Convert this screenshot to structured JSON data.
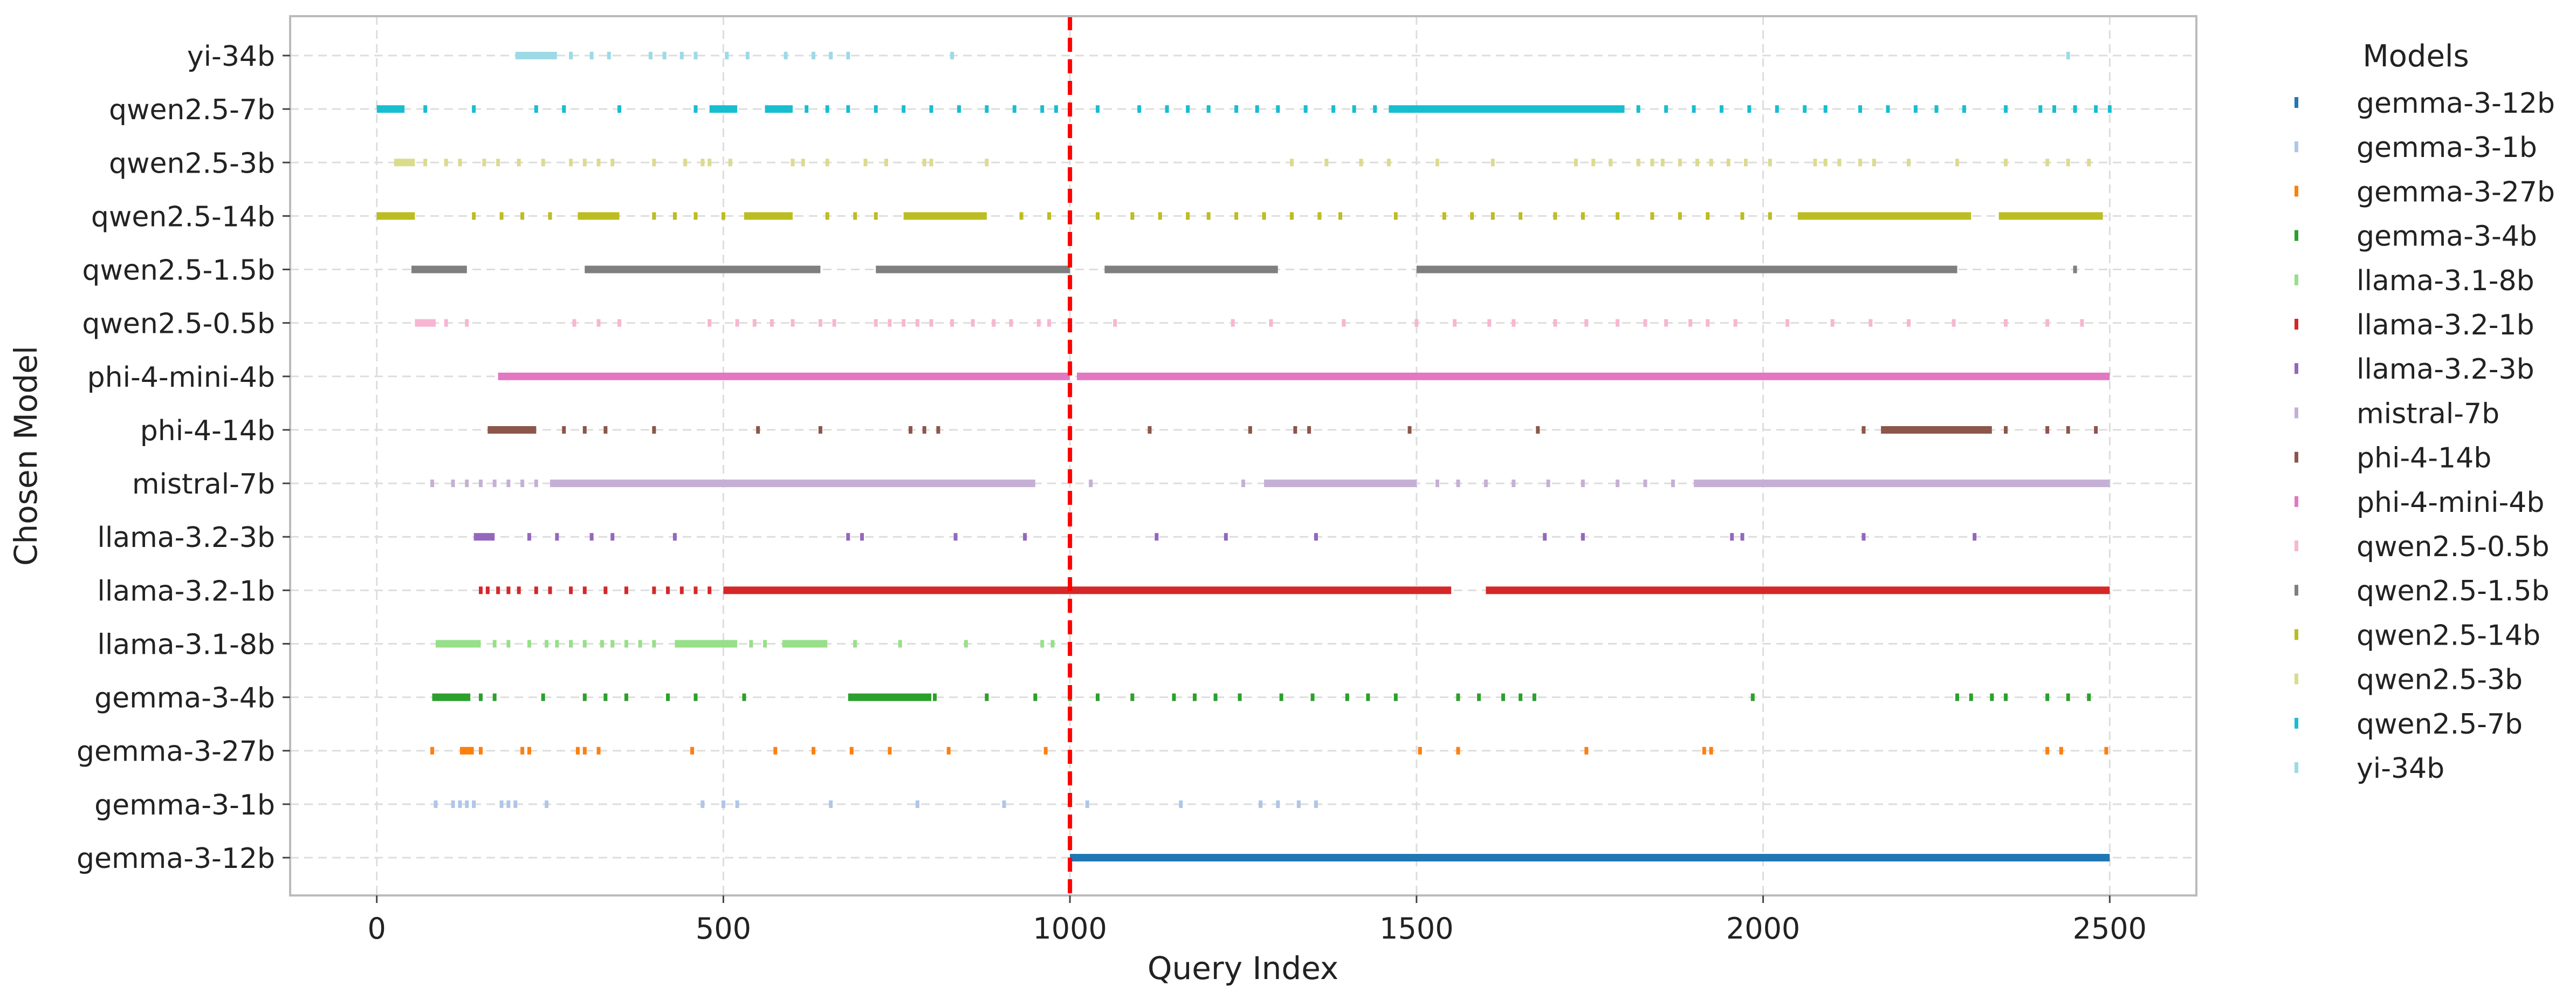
{
  "chart_data": {
    "type": "scatter",
    "xlabel": "Query Index",
    "ylabel": "Chosen Model",
    "xlim": [
      -125,
      2625
    ],
    "xticks": [
      0,
      500,
      1000,
      1500,
      2000,
      2500
    ],
    "grid": true,
    "legend": {
      "title": "Models",
      "placement": "outside-right"
    },
    "annotations": [
      {
        "type": "vline",
        "x": 1000,
        "color": "#ff0000",
        "style": "dashed"
      }
    ],
    "y_categories": [
      "gemma-3-12b",
      "gemma-3-1b",
      "gemma-3-27b",
      "gemma-3-4b",
      "llama-3.1-8b",
      "llama-3.2-1b",
      "llama-3.2-3b",
      "mistral-7b",
      "phi-4-14b",
      "phi-4-mini-4b",
      "qwen2.5-0.5b",
      "qwen2.5-1.5b",
      "qwen2.5-14b",
      "qwen2.5-3b",
      "qwen2.5-7b",
      "yi-34b"
    ],
    "series": [
      {
        "name": "gemma-3-12b",
        "color": "#1f77b4",
        "ranges": [
          [
            1000,
            2500
          ]
        ],
        "points": []
      },
      {
        "name": "gemma-3-1b",
        "color": "#aec7e8",
        "ranges": [],
        "points": [
          85,
          110,
          120,
          130,
          140,
          180,
          190,
          200,
          245,
          470,
          500,
          520,
          655,
          780,
          905,
          1025,
          1160,
          1275,
          1300,
          1330,
          1355
        ]
      },
      {
        "name": "gemma-3-27b",
        "color": "#ff7f0e",
        "ranges": [
          [
            120,
            140
          ]
        ],
        "points": [
          80,
          150,
          210,
          220,
          290,
          300,
          320,
          455,
          575,
          630,
          685,
          740,
          825,
          965,
          1505,
          1560,
          1745,
          1915,
          1925,
          2410,
          2430,
          2495
        ]
      },
      {
        "name": "gemma-3-4b",
        "color": "#2ca02c",
        "ranges": [
          [
            80,
            135
          ],
          [
            680,
            800
          ]
        ],
        "points": [
          150,
          170,
          240,
          300,
          330,
          360,
          420,
          460,
          530,
          805,
          880,
          950,
          1000,
          1040,
          1090,
          1150,
          1180,
          1210,
          1245,
          1305,
          1350,
          1400,
          1430,
          1470,
          1560,
          1590,
          1625,
          1650,
          1670,
          1985,
          2280,
          2300,
          2330,
          2350,
          2410,
          2440,
          2470
        ]
      },
      {
        "name": "llama-3.1-8b",
        "color": "#98df8a",
        "ranges": [
          [
            85,
            150
          ],
          [
            430,
            520
          ],
          [
            585,
            650
          ]
        ],
        "points": [
          170,
          190,
          220,
          245,
          260,
          280,
          300,
          325,
          340,
          360,
          380,
          400,
          540,
          560,
          690,
          755,
          850,
          960,
          975
        ]
      },
      {
        "name": "llama-3.2-1b",
        "color": "#d62728",
        "ranges": [
          [
            500,
            1000
          ],
          [
            1000,
            1550
          ],
          [
            1600,
            2500
          ]
        ],
        "points": [
          150,
          160,
          175,
          190,
          205,
          230,
          250,
          280,
          300,
          330,
          360,
          400,
          420,
          440,
          460,
          480
        ]
      },
      {
        "name": "llama-3.2-3b",
        "color": "#9467bd",
        "ranges": [
          [
            140,
            170
          ]
        ],
        "points": [
          220,
          260,
          310,
          340,
          430,
          680,
          700,
          835,
          935,
          1125,
          1225,
          1355,
          1685,
          1740,
          1955,
          1970,
          2145,
          2305
        ]
      },
      {
        "name": "mistral-7b",
        "color": "#c5b0d5",
        "ranges": [
          [
            250,
            950
          ],
          [
            1280,
            1500
          ],
          [
            1900,
            2500
          ]
        ],
        "points": [
          80,
          110,
          130,
          150,
          170,
          190,
          210,
          230,
          1030,
          1250,
          1530,
          1560,
          1600,
          1640,
          1690,
          1740,
          1790,
          1830,
          1870
        ]
      },
      {
        "name": "phi-4-14b",
        "color": "#8c564b",
        "ranges": [
          [
            160,
            230
          ],
          [
            2170,
            2330
          ]
        ],
        "points": [
          270,
          300,
          330,
          400,
          550,
          640,
          770,
          790,
          810,
          1115,
          1260,
          1325,
          1345,
          1490,
          1675,
          2145,
          2350,
          2410,
          2440,
          2480
        ]
      },
      {
        "name": "phi-4-mini-4b",
        "color": "#e377c2",
        "ranges": [
          [
            175,
            1000
          ],
          [
            1010,
            2500
          ]
        ],
        "points": []
      },
      {
        "name": "qwen2.5-0.5b",
        "color": "#f7b6d2",
        "ranges": [
          [
            55,
            85
          ]
        ],
        "points": [
          100,
          130,
          285,
          320,
          350,
          480,
          520,
          545,
          570,
          600,
          640,
          660,
          720,
          740,
          760,
          780,
          800,
          830,
          860,
          890,
          915,
          955,
          970,
          1065,
          1235,
          1290,
          1395,
          1500,
          1555,
          1605,
          1640,
          1700,
          1745,
          1790,
          1830,
          1860,
          1895,
          1920,
          1960,
          2035,
          2100,
          2155,
          2210,
          2275,
          2350,
          2410,
          2460
        ]
      },
      {
        "name": "qwen2.5-1.5b",
        "color": "#7f7f7f",
        "ranges": [
          [
            50,
            130
          ],
          [
            300,
            640
          ],
          [
            720,
            1000
          ],
          [
            1050,
            1300
          ],
          [
            1500,
            2280
          ]
        ],
        "points": [
          2450
        ]
      },
      {
        "name": "qwen2.5-14b",
        "color": "#bcbd22",
        "ranges": [
          [
            0,
            55
          ],
          [
            290,
            350
          ],
          [
            530,
            600
          ],
          [
            760,
            880
          ],
          [
            2050,
            2300
          ],
          [
            2340,
            2490
          ]
        ],
        "points": [
          140,
          180,
          210,
          250,
          400,
          430,
          460,
          500,
          650,
          690,
          720,
          930,
          970,
          1000,
          1040,
          1090,
          1130,
          1170,
          1200,
          1240,
          1280,
          1320,
          1360,
          1390,
          1470,
          1540,
          1580,
          1610,
          1650,
          1700,
          1740,
          1790,
          1840,
          1880,
          1920,
          1970,
          2010
        ]
      },
      {
        "name": "qwen2.5-3b",
        "color": "#dbdb8d",
        "ranges": [
          [
            25,
            55
          ]
        ],
        "points": [
          70,
          100,
          120,
          155,
          175,
          205,
          240,
          280,
          300,
          320,
          340,
          400,
          445,
          470,
          480,
          510,
          600,
          615,
          650,
          705,
          735,
          790,
          800,
          880,
          1320,
          1370,
          1420,
          1460,
          1530,
          1610,
          1730,
          1755,
          1780,
          1820,
          1840,
          1855,
          1880,
          1905,
          1925,
          1950,
          1975,
          2010,
          2075,
          2090,
          2110,
          2140,
          2160,
          2210,
          2280,
          2350,
          2410,
          2440,
          2470
        ]
      },
      {
        "name": "qwen2.5-7b",
        "color": "#17becf",
        "ranges": [
          [
            0,
            40
          ],
          [
            480,
            520
          ],
          [
            560,
            600
          ],
          [
            1460,
            1800
          ]
        ],
        "points": [
          70,
          140,
          230,
          270,
          350,
          460,
          620,
          650,
          680,
          720,
          760,
          800,
          840,
          880,
          920,
          960,
          980,
          1040,
          1100,
          1140,
          1170,
          1200,
          1240,
          1270,
          1300,
          1340,
          1380,
          1410,
          1440,
          1820,
          1860,
          1900,
          1940,
          1980,
          2020,
          2060,
          2090,
          2140,
          2180,
          2220,
          2250,
          2290,
          2350,
          2400,
          2420,
          2450,
          2480,
          2500
        ]
      },
      {
        "name": "yi-34b",
        "color": "#9edae5",
        "ranges": [
          [
            200,
            260
          ]
        ],
        "points": [
          280,
          310,
          335,
          395,
          415,
          440,
          460,
          505,
          535,
          590,
          630,
          655,
          680,
          830,
          2440
        ]
      }
    ]
  }
}
